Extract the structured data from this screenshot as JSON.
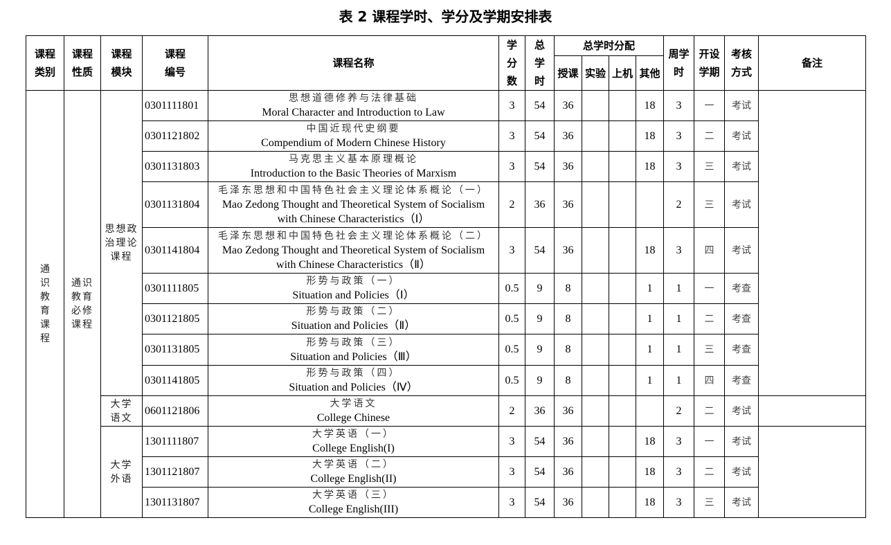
{
  "title": "表 2 课程学时、学分及学期安排表",
  "headers": {
    "category": "课程类别",
    "nature": "课程性质",
    "module": "课程模块",
    "code": "课程编号",
    "name": "课程名称",
    "credits": "学分数",
    "total_hours": "总学时",
    "distribution": "总学时分配",
    "lecture": "授课",
    "lab": "实验",
    "computer": "上机",
    "other": "其他",
    "weekly": "周学时",
    "semester": "开设学期",
    "exam": "考核方式",
    "remarks": "备注"
  },
  "groups": {
    "category": "通识教育课程",
    "nature": "通识教育必修课程",
    "modules": [
      "思想政治理论课程",
      "大学语文",
      "大学外语"
    ]
  },
  "rows": [
    {
      "code": "0301111801",
      "zh": "思想道德修养与法律基础",
      "en": [
        "Moral Character and Introduction to Law"
      ],
      "credits": "3",
      "total": "54",
      "lecture": "36",
      "lab": "",
      "computer": "",
      "other": "18",
      "weekly": "3",
      "semester": "一",
      "exam": "考试"
    },
    {
      "code": "0301121802",
      "zh": "中国近现代史纲要",
      "en": [
        "Compendium of Modern Chinese History"
      ],
      "credits": "3",
      "total": "54",
      "lecture": "36",
      "lab": "",
      "computer": "",
      "other": "18",
      "weekly": "3",
      "semester": "二",
      "exam": "考试"
    },
    {
      "code": "0301131803",
      "zh": "马克思主义基本原理概论",
      "en": [
        "Introduction to the Basic Theories of Marxism"
      ],
      "credits": "3",
      "total": "54",
      "lecture": "36",
      "lab": "",
      "computer": "",
      "other": "18",
      "weekly": "3",
      "semester": "三",
      "exam": "考试"
    },
    {
      "code": "0301131804",
      "zh": "毛泽东思想和中国特色社会主义理论体系概论（一）",
      "en": [
        "Mao Zedong Thought and Theoretical System of Socialism",
        "with Chinese Characteristics（Ⅰ）"
      ],
      "credits": "2",
      "total": "36",
      "lecture": "36",
      "lab": "",
      "computer": "",
      "other": "",
      "weekly": "2",
      "semester": "三",
      "exam": "考试"
    },
    {
      "code": "0301141804",
      "zh": "毛泽东思想和中国特色社会主义理论体系概论（二）",
      "en": [
        "Mao Zedong Thought and Theoretical System of Socialism",
        "with Chinese Characteristics（Ⅱ）"
      ],
      "credits": "3",
      "total": "54",
      "lecture": "36",
      "lab": "",
      "computer": "",
      "other": "18",
      "weekly": "3",
      "semester": "四",
      "exam": "考试"
    },
    {
      "code": "0301111805",
      "zh": "形势与政策（一）",
      "en": [
        "Situation and Policies（Ⅰ）"
      ],
      "credits": "0.5",
      "total": "9",
      "lecture": "8",
      "lab": "",
      "computer": "",
      "other": "1",
      "weekly": "1",
      "semester": "一",
      "exam": "考查"
    },
    {
      "code": "0301121805",
      "zh": "形势与政策（二）",
      "en": [
        "Situation and Policies（Ⅱ）"
      ],
      "credits": "0.5",
      "total": "9",
      "lecture": "8",
      "lab": "",
      "computer": "",
      "other": "1",
      "weekly": "1",
      "semester": "二",
      "exam": "考查"
    },
    {
      "code": "0301131805",
      "zh": "形势与政策（三）",
      "en": [
        "Situation and Policies（Ⅲ）"
      ],
      "credits": "0.5",
      "total": "9",
      "lecture": "8",
      "lab": "",
      "computer": "",
      "other": "1",
      "weekly": "1",
      "semester": "三",
      "exam": "考查"
    },
    {
      "code": "0301141805",
      "zh": "形势与政策（四）",
      "en": [
        "Situation and Policies（Ⅳ）"
      ],
      "credits": "0.5",
      "total": "9",
      "lecture": "8",
      "lab": "",
      "computer": "",
      "other": "1",
      "weekly": "1",
      "semester": "四",
      "exam": "考查"
    },
    {
      "code": "0601121806",
      "zh": "大学语文",
      "en": [
        "College Chinese"
      ],
      "credits": "2",
      "total": "36",
      "lecture": "36",
      "lab": "",
      "computer": "",
      "other": "",
      "weekly": "2",
      "semester": "二",
      "exam": "考试"
    },
    {
      "code": "1301111807",
      "zh": "大学英语（一）",
      "en": [
        "College English(I)"
      ],
      "credits": "3",
      "total": "54",
      "lecture": "36",
      "lab": "",
      "computer": "",
      "other": "18",
      "weekly": "3",
      "semester": "一",
      "exam": "考试"
    },
    {
      "code": "1301121807",
      "zh": "大学英语（二）",
      "en": [
        "College English(II)"
      ],
      "credits": "3",
      "total": "54",
      "lecture": "36",
      "lab": "",
      "computer": "",
      "other": "18",
      "weekly": "3",
      "semester": "二",
      "exam": "考试"
    },
    {
      "code": "1301131807",
      "zh": "大学英语（三）",
      "en": [
        "College English(III)"
      ],
      "credits": "3",
      "total": "54",
      "lecture": "36",
      "lab": "",
      "computer": "",
      "other": "18",
      "weekly": "3",
      "semester": "三",
      "exam": "考试"
    }
  ]
}
